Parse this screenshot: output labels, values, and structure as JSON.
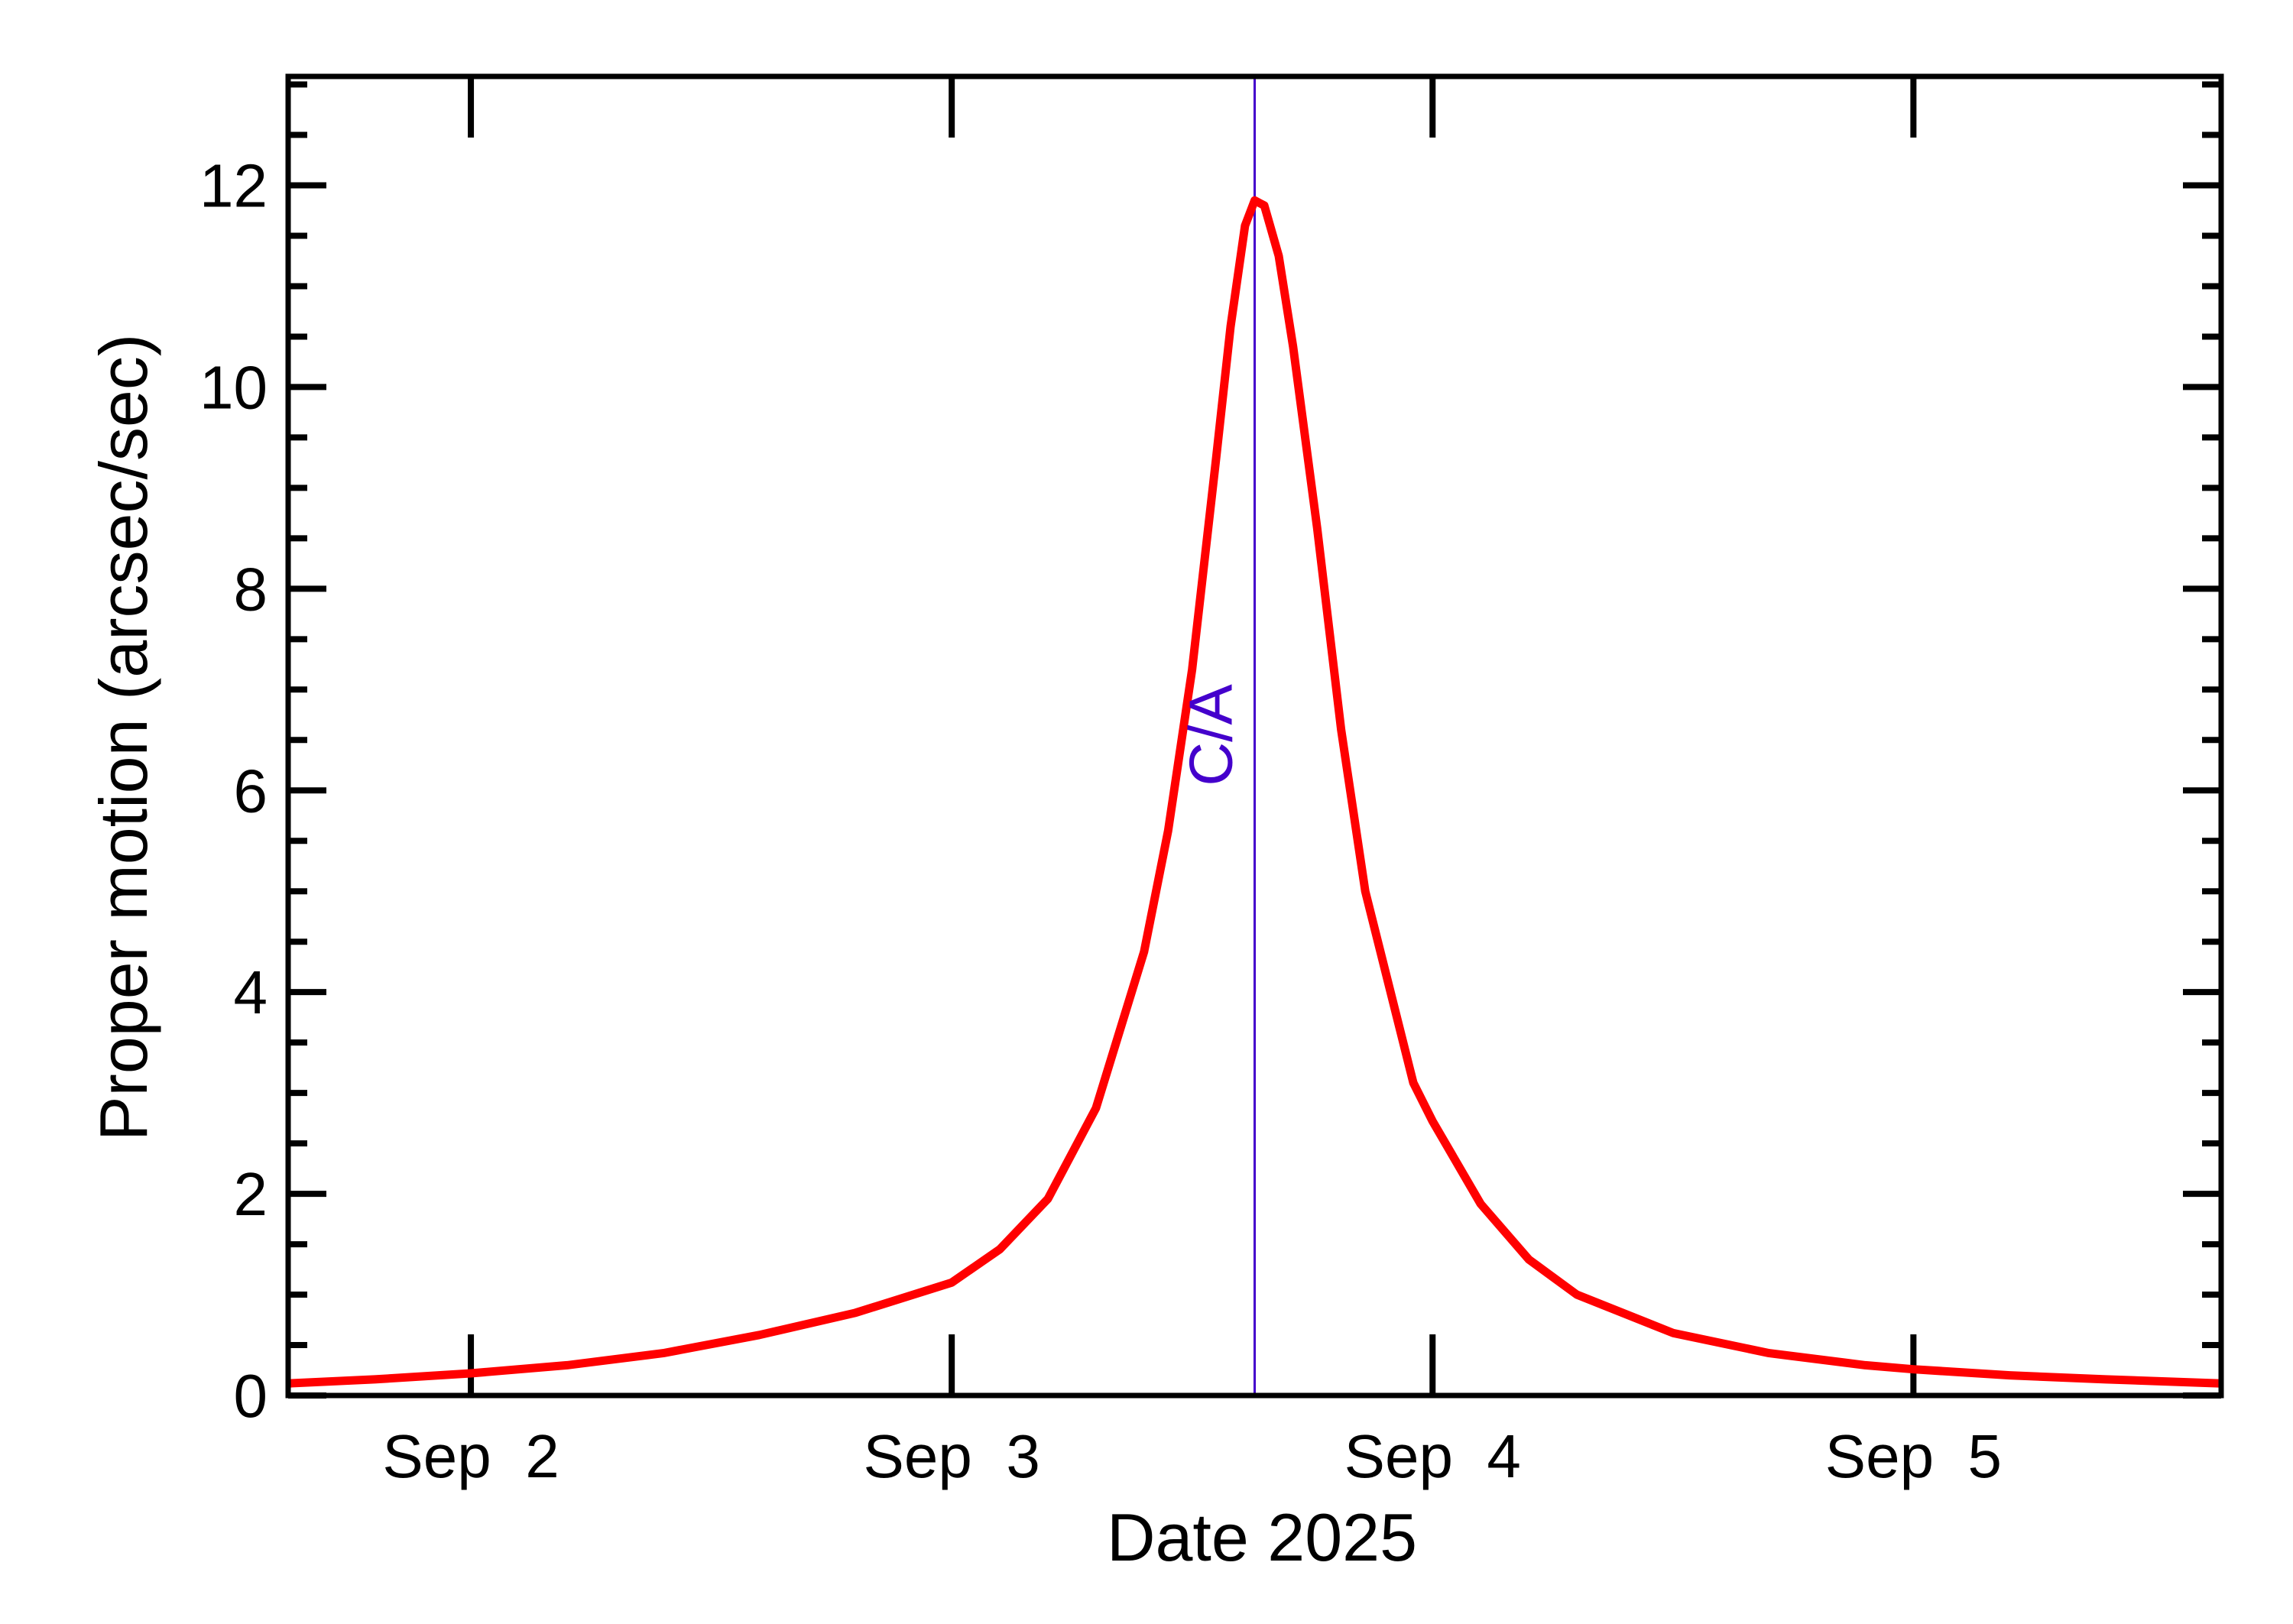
{
  "chart_data": {
    "type": "line",
    "title": "",
    "xlabel": "Date 2025",
    "ylabel": "Proper motion (arcsec/sec)",
    "x_unit": "day of September 2025 (fractional)",
    "xlim": [
      1.62,
      5.64
    ],
    "ylim": [
      0,
      13.08
    ],
    "grid": false,
    "legend": null,
    "x_ticks": [
      {
        "value": 2,
        "label": "Sep  2"
      },
      {
        "value": 3,
        "label": "Sep  3"
      },
      {
        "value": 4,
        "label": "Sep  4"
      },
      {
        "value": 5,
        "label": "Sep  5"
      }
    ],
    "x_minor_ticks": [],
    "y_ticks": [
      {
        "value": 0,
        "label": "0"
      },
      {
        "value": 2,
        "label": "2"
      },
      {
        "value": 4,
        "label": "4"
      },
      {
        "value": 6,
        "label": "6"
      },
      {
        "value": 8,
        "label": "8"
      },
      {
        "value": 10,
        "label": "10"
      },
      {
        "value": 12,
        "label": "12"
      }
    ],
    "y_minor_step": 0.5,
    "series": [
      {
        "name": "Proper motion",
        "color": "#ff0000",
        "x": [
          1.62,
          1.8,
          2.0,
          2.2,
          2.4,
          2.6,
          2.8,
          3.0,
          3.1,
          3.2,
          3.3,
          3.4,
          3.45,
          3.5,
          3.55,
          3.58,
          3.61,
          3.63,
          3.65,
          3.68,
          3.71,
          3.76,
          3.81,
          3.86,
          3.96,
          4.0,
          4.1,
          4.2,
          4.3,
          4.5,
          4.7,
          4.9,
          5.0,
          5.2,
          5.4,
          5.64
        ],
        "y": [
          0.12,
          0.16,
          0.22,
          0.3,
          0.42,
          0.6,
          0.82,
          1.12,
          1.45,
          1.95,
          2.85,
          4.4,
          5.6,
          7.2,
          9.3,
          10.6,
          11.6,
          11.85,
          11.8,
          11.3,
          10.4,
          8.6,
          6.6,
          5.0,
          3.1,
          2.72,
          1.9,
          1.35,
          1.0,
          0.62,
          0.42,
          0.3,
          0.26,
          0.2,
          0.16,
          0.12
        ]
      }
    ],
    "annotations": [
      {
        "type": "vline",
        "x": 3.63,
        "color": "#4400cc",
        "label": "C/A",
        "label_rotation": -90
      }
    ]
  },
  "annotation": {
    "ca_label": "C/A"
  }
}
